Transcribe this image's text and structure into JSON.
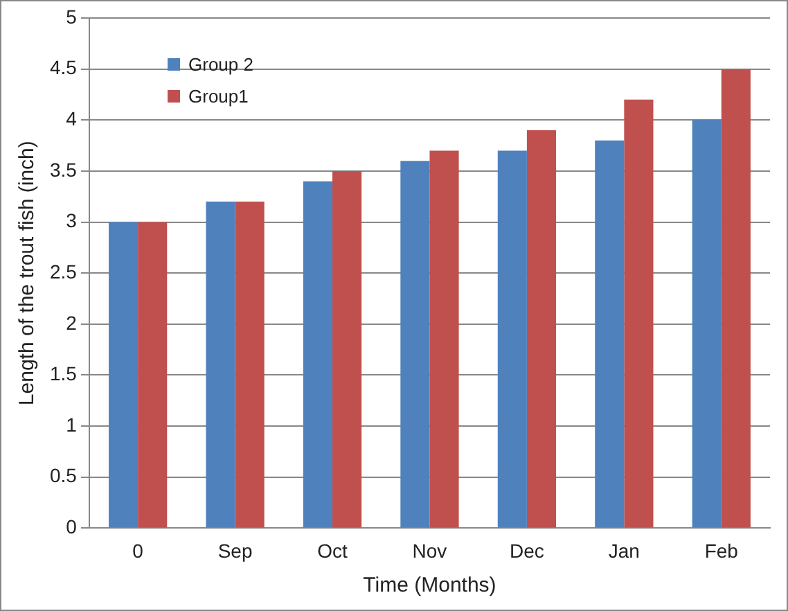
{
  "chart_data": {
    "type": "bar",
    "xlabel": "Time (Months)",
    "ylabel": "Length of the trout fish (inch)",
    "categories": [
      "0",
      "Sep",
      "Oct",
      "Nov",
      "Dec",
      "Jan",
      "Feb"
    ],
    "series": [
      {
        "name": "Group 2",
        "color": "#4f81bd",
        "values": [
          3,
          3.2,
          3.4,
          3.6,
          3.7,
          3.8,
          4.0
        ]
      },
      {
        "name": "Group1",
        "color": "#c0504d",
        "values": [
          3,
          3.2,
          3.5,
          3.7,
          3.9,
          4.2,
          4.5
        ]
      }
    ],
    "ylim": [
      0,
      5
    ],
    "yticks": [
      0,
      0.5,
      1,
      1.5,
      2,
      2.5,
      3,
      3.5,
      4,
      4.5,
      5
    ],
    "grid": "y",
    "legend": "top left"
  }
}
